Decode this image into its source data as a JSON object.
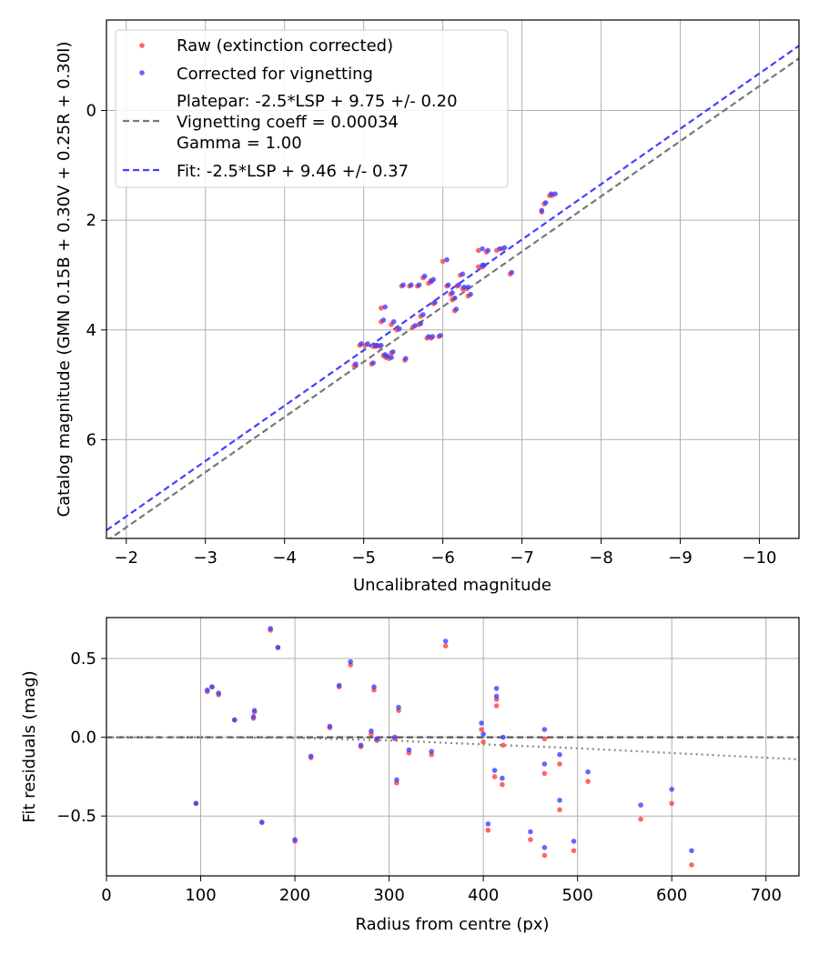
{
  "chart_data": [
    {
      "type": "scatter",
      "title": "",
      "xlabel": "Uncalibrated magnitude",
      "ylabel": "Catalog magnitude (GMN 0.15B + 0.30V + 0.25R + 0.30I)",
      "xlim": [
        -1.75,
        -10.5
      ],
      "ylim": [
        7.8,
        -1.65
      ],
      "x_inverted": true,
      "y_inverted": true,
      "grid": true,
      "legend_position": "upper-left",
      "xticks": [
        -2,
        -3,
        -4,
        -5,
        -6,
        -7,
        -8,
        -9,
        -10
      ],
      "xtick_labels": [
        "−2",
        "−3",
        "−4",
        "−5",
        "−6",
        "−7",
        "−8",
        "−9",
        "−10"
      ],
      "yticks": [
        0,
        2,
        4,
        6
      ],
      "ytick_labels": [
        "0",
        "2",
        "4",
        "6"
      ],
      "legend": {
        "raw": "Raw (extinction corrected)",
        "corrected": "Corrected for vignetting",
        "platepar_lines": [
          "Platepar: -2.5*LSP + 9.75 +/- 0.20",
          "Vignetting coeff = 0.00034",
          "Gamma = 1.00"
        ],
        "fit": "Fit: -2.5*LSP + 9.46 +/- 0.37"
      },
      "series": [
        {
          "name": "Raw (extinction corrected)",
          "color": "#ff4040",
          "marker": "dot",
          "points": [
            [
              -4.88,
              4.65
            ],
            [
              -4.95,
              4.28
            ],
            [
              -5.02,
              4.28
            ],
            [
              -5.1,
              4.62
            ],
            [
              -5.12,
              4.3
            ],
            [
              -5.15,
              4.3
            ],
            [
              -5.2,
              4.3
            ],
            [
              -5.22,
              3.85
            ],
            [
              -5.22,
              3.6
            ],
            [
              -5.25,
              4.47
            ],
            [
              -5.28,
              4.5
            ],
            [
              -5.32,
              4.52
            ],
            [
              -5.35,
              4.42
            ],
            [
              -5.35,
              3.9
            ],
            [
              -5.42,
              4.0
            ],
            [
              -5.48,
              3.2
            ],
            [
              -5.52,
              4.55
            ],
            [
              -5.58,
              3.2
            ],
            [
              -5.62,
              3.95
            ],
            [
              -5.68,
              3.2
            ],
            [
              -5.7,
              3.9
            ],
            [
              -5.72,
              3.75
            ],
            [
              -5.75,
              3.05
            ],
            [
              -5.8,
              4.15
            ],
            [
              -5.82,
              3.15
            ],
            [
              -5.85,
              3.1
            ],
            [
              -5.85,
              4.15
            ],
            [
              -5.88,
              3.52
            ],
            [
              -5.95,
              4.12
            ],
            [
              -6.0,
              2.75
            ],
            [
              -6.05,
              3.2
            ],
            [
              -6.1,
              3.35
            ],
            [
              -6.12,
              3.45
            ],
            [
              -6.15,
              3.65
            ],
            [
              -6.18,
              3.2
            ],
            [
              -6.22,
              3.0
            ],
            [
              -6.25,
              3.25
            ],
            [
              -6.3,
              3.25
            ],
            [
              -6.32,
              3.38
            ],
            [
              -6.45,
              2.55
            ],
            [
              -6.45,
              2.85
            ],
            [
              -6.5,
              2.85
            ],
            [
              -6.55,
              2.58
            ],
            [
              -6.68,
              2.55
            ],
            [
              -6.75,
              2.52
            ],
            [
              -6.85,
              2.98
            ],
            [
              -7.25,
              1.85
            ],
            [
              -7.28,
              1.7
            ],
            [
              -7.35,
              1.55
            ],
            [
              -7.38,
              1.55
            ]
          ]
        },
        {
          "name": "Corrected for vignetting",
          "color": "#4040ff",
          "marker": "dot",
          "points": [
            [
              -4.9,
              4.62
            ],
            [
              -4.97,
              4.25
            ],
            [
              -5.05,
              4.25
            ],
            [
              -5.12,
              4.6
            ],
            [
              -5.15,
              4.28
            ],
            [
              -5.17,
              4.28
            ],
            [
              -5.22,
              4.28
            ],
            [
              -5.25,
              3.82
            ],
            [
              -5.27,
              3.58
            ],
            [
              -5.27,
              4.45
            ],
            [
              -5.3,
              4.48
            ],
            [
              -5.35,
              4.5
            ],
            [
              -5.37,
              4.4
            ],
            [
              -5.38,
              3.85
            ],
            [
              -5.45,
              3.98
            ],
            [
              -5.5,
              3.18
            ],
            [
              -5.53,
              4.52
            ],
            [
              -5.6,
              3.18
            ],
            [
              -5.65,
              3.92
            ],
            [
              -5.7,
              3.18
            ],
            [
              -5.72,
              3.88
            ],
            [
              -5.75,
              3.72
            ],
            [
              -5.77,
              3.02
            ],
            [
              -5.82,
              4.12
            ],
            [
              -5.85,
              3.12
            ],
            [
              -5.88,
              3.08
            ],
            [
              -5.87,
              4.12
            ],
            [
              -5.9,
              3.5
            ],
            [
              -5.97,
              4.1
            ],
            [
              -6.05,
              2.72
            ],
            [
              -6.07,
              3.18
            ],
            [
              -6.12,
              3.32
            ],
            [
              -6.15,
              3.42
            ],
            [
              -6.17,
              3.62
            ],
            [
              -6.2,
              3.18
            ],
            [
              -6.25,
              2.98
            ],
            [
              -6.27,
              3.22
            ],
            [
              -6.32,
              3.22
            ],
            [
              -6.35,
              3.35
            ],
            [
              -6.5,
              2.52
            ],
            [
              -6.5,
              2.82
            ],
            [
              -6.52,
              2.82
            ],
            [
              -6.57,
              2.55
            ],
            [
              -6.72,
              2.52
            ],
            [
              -6.78,
              2.5
            ],
            [
              -6.87,
              2.95
            ],
            [
              -7.25,
              1.82
            ],
            [
              -7.3,
              1.68
            ],
            [
              -7.37,
              1.52
            ],
            [
              -7.42,
              1.52
            ]
          ]
        }
      ],
      "lines": [
        {
          "name": "Platepar: -2.5*LSP + 9.75 +/- 0.20",
          "color": "#777777",
          "style": "dashed",
          "x": [
            -1.75,
            -10.5
          ],
          "y": [
            7.85,
            -0.95
          ]
        },
        {
          "name": "Fit: -2.5*LSP + 9.46 +/- 0.37",
          "color": "#4040ff",
          "style": "dashed",
          "x": [
            -1.75,
            -10.5
          ],
          "y": [
            7.65,
            -1.18
          ]
        }
      ]
    },
    {
      "type": "scatter",
      "title": "",
      "xlabel": "Radius from centre (px)",
      "ylabel": "Fit residuals (mag)",
      "xlim": [
        0,
        735
      ],
      "ylim": [
        -0.88,
        0.76
      ],
      "grid": true,
      "xticks": [
        0,
        100,
        200,
        300,
        400,
        500,
        600,
        700
      ],
      "xtick_labels": [
        "0",
        "100",
        "200",
        "300",
        "400",
        "500",
        "600",
        "700"
      ],
      "yticks": [
        0.5,
        0.0,
        -0.5
      ],
      "ytick_labels": [
        "0.5",
        "0.0",
        "−0.5"
      ],
      "series": [
        {
          "name": "Raw (extinction corrected)",
          "color": "#ff4040",
          "marker": "dot",
          "points": [
            [
              95,
              -0.42
            ],
            [
              107,
              0.29
            ],
            [
              112,
              0.32
            ],
            [
              119,
              0.27
            ],
            [
              136,
              0.11
            ],
            [
              156,
              0.12
            ],
            [
              157,
              0.16
            ],
            [
              165,
              -0.54
            ],
            [
              174,
              0.68
            ],
            [
              182,
              0.57
            ],
            [
              200,
              -0.66
            ],
            [
              217,
              -0.13
            ],
            [
              237,
              0.06
            ],
            [
              247,
              0.32
            ],
            [
              259,
              0.46
            ],
            [
              270,
              -0.06
            ],
            [
              281,
              0.02
            ],
            [
              284,
              0.3
            ],
            [
              287,
              -0.02
            ],
            [
              306,
              -0.01
            ],
            [
              308,
              -0.29
            ],
            [
              310,
              0.17
            ],
            [
              321,
              -0.1
            ],
            [
              345,
              -0.11
            ],
            [
              360,
              0.58
            ],
            [
              398,
              0.05
            ],
            [
              400,
              -0.03
            ],
            [
              405,
              -0.59
            ],
            [
              412,
              -0.25
            ],
            [
              414,
              0.2
            ],
            [
              414,
              0.24
            ],
            [
              420,
              -0.3
            ],
            [
              421,
              -0.05
            ],
            [
              450,
              -0.65
            ],
            [
              465,
              -0.23
            ],
            [
              465,
              -0.75
            ],
            [
              465,
              -0.01
            ],
            [
              481,
              -0.46
            ],
            [
              481,
              -0.17
            ],
            [
              511,
              -0.28
            ],
            [
              496,
              -0.72
            ],
            [
              567,
              -0.52
            ],
            [
              600,
              -0.42
            ],
            [
              621,
              -0.81
            ]
          ]
        },
        {
          "name": "Corrected for vignetting",
          "color": "#4040ff",
          "marker": "dot",
          "points": [
            [
              95,
              -0.42
            ],
            [
              107,
              0.3
            ],
            [
              112,
              0.32
            ],
            [
              119,
              0.28
            ],
            [
              136,
              0.11
            ],
            [
              156,
              0.13
            ],
            [
              157,
              0.17
            ],
            [
              165,
              -0.54
            ],
            [
              174,
              0.69
            ],
            [
              182,
              0.57
            ],
            [
              200,
              -0.65
            ],
            [
              217,
              -0.12
            ],
            [
              237,
              0.07
            ],
            [
              247,
              0.33
            ],
            [
              259,
              0.48
            ],
            [
              270,
              -0.05
            ],
            [
              281,
              0.04
            ],
            [
              284,
              0.32
            ],
            [
              287,
              -0.01
            ],
            [
              306,
              0.0
            ],
            [
              308,
              -0.27
            ],
            [
              310,
              0.19
            ],
            [
              321,
              -0.08
            ],
            [
              345,
              -0.09
            ],
            [
              360,
              0.61
            ],
            [
              398,
              0.09
            ],
            [
              400,
              0.02
            ],
            [
              405,
              -0.55
            ],
            [
              412,
              -0.21
            ],
            [
              414,
              0.26
            ],
            [
              414,
              0.31
            ],
            [
              420,
              -0.26
            ],
            [
              421,
              0.0
            ],
            [
              450,
              -0.6
            ],
            [
              465,
              -0.17
            ],
            [
              465,
              -0.7
            ],
            [
              465,
              0.05
            ],
            [
              481,
              -0.4
            ],
            [
              481,
              -0.11
            ],
            [
              511,
              -0.22
            ],
            [
              496,
              -0.66
            ],
            [
              567,
              -0.43
            ],
            [
              600,
              -0.33
            ],
            [
              621,
              -0.72
            ]
          ]
        }
      ],
      "lines": [
        {
          "name": "zero",
          "color": "#555555",
          "style": "dashed",
          "x": [
            0,
            735
          ],
          "y": [
            0,
            0
          ]
        },
        {
          "name": "vignetting",
          "color": "#888888",
          "style": "dotted",
          "x": [
            0,
            100,
            200,
            300,
            400,
            500,
            600,
            735
          ],
          "y": [
            0,
            0.0,
            -0.004,
            -0.02,
            -0.045,
            -0.07,
            -0.1,
            -0.14
          ]
        }
      ]
    }
  ]
}
